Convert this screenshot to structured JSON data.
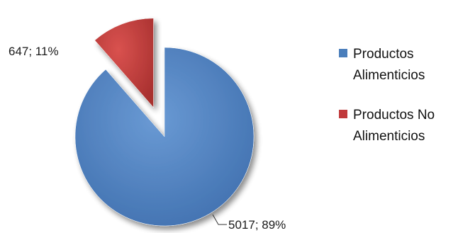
{
  "chart_data": {
    "type": "pie",
    "exploded": true,
    "style": "3d",
    "slices": [
      {
        "label": "Productos Alimenticios",
        "value": 5017,
        "percent": 89,
        "data_label": "5017; 89%",
        "color": "#4a7ebb"
      },
      {
        "label": "Productos No Alimenticios",
        "value": 647,
        "percent": 11,
        "data_label": "647; 11%",
        "color": "#c0393b"
      }
    ],
    "legend": {
      "placement": "right",
      "items": [
        {
          "label": "Productos\nAlimenticios",
          "color": "#4a7ebb"
        },
        {
          "label": "Productos No\nAlimenticios",
          "color": "#c0393b"
        }
      ]
    }
  }
}
